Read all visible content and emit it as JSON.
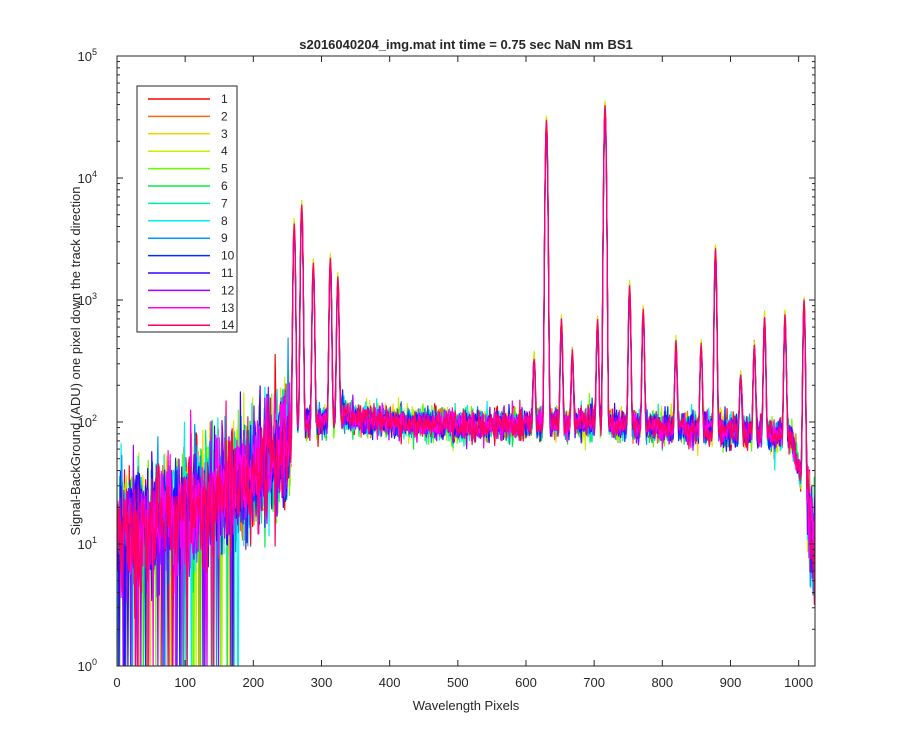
{
  "chart_data": {
    "type": "line",
    "title": "s2016040204_img.mat int time = 0.75 sec  NaN nm BS1",
    "xlabel": "Wavelength Pixels",
    "ylabel": "Signal-BackGround (ADU) one pixel down the track direction",
    "xlim": [
      0,
      1024
    ],
    "ylim": [
      1,
      100000
    ],
    "yscale": "log",
    "xticks": [
      0,
      100,
      200,
      300,
      400,
      500,
      600,
      700,
      800,
      900,
      1000
    ],
    "yticks": [
      {
        "base": "10",
        "exp": "0"
      },
      {
        "base": "10",
        "exp": "1"
      },
      {
        "base": "10",
        "exp": "2"
      },
      {
        "base": "10",
        "exp": "3"
      },
      {
        "base": "10",
        "exp": "4"
      },
      {
        "base": "10",
        "exp": "5"
      }
    ],
    "grid": false,
    "legend_position": "top-left",
    "series": [
      {
        "name": "1",
        "color": "#ff0000"
      },
      {
        "name": "2",
        "color": "#ff6a00"
      },
      {
        "name": "3",
        "color": "#ffd000"
      },
      {
        "name": "4",
        "color": "#c8f000"
      },
      {
        "name": "5",
        "color": "#66ff00"
      },
      {
        "name": "6",
        "color": "#00ee40"
      },
      {
        "name": "7",
        "color": "#00f0a0"
      },
      {
        "name": "8",
        "color": "#00eef0"
      },
      {
        "name": "9",
        "color": "#0096ff"
      },
      {
        "name": "10",
        "color": "#0030ff"
      },
      {
        "name": "11",
        "color": "#3c00ff"
      },
      {
        "name": "12",
        "color": "#9a00ff"
      },
      {
        "name": "13",
        "color": "#ff00f0"
      },
      {
        "name": "14",
        "color": "#ff0066"
      }
    ],
    "baseline_profile": {
      "x": [
        0,
        100,
        180,
        250,
        262,
        300,
        330,
        400,
        500,
        600,
        700,
        800,
        900,
        990,
        1010,
        1024
      ],
      "y": [
        12,
        18,
        32,
        70,
        95,
        100,
        110,
        100,
        92,
        95,
        98,
        90,
        85,
        75,
        25,
        10
      ]
    },
    "peaks": [
      {
        "x": 260,
        "y": 3900
      },
      {
        "x": 271,
        "y": 5600
      },
      {
        "x": 288,
        "y": 1800
      },
      {
        "x": 313,
        "y": 2000
      },
      {
        "x": 324,
        "y": 1350
      },
      {
        "x": 612,
        "y": 230
      },
      {
        "x": 630,
        "y": 28000
      },
      {
        "x": 652,
        "y": 560
      },
      {
        "x": 668,
        "y": 260
      },
      {
        "x": 705,
        "y": 560
      },
      {
        "x": 716,
        "y": 37000
      },
      {
        "x": 752,
        "y": 1150
      },
      {
        "x": 772,
        "y": 700
      },
      {
        "x": 820,
        "y": 350
      },
      {
        "x": 857,
        "y": 330
      },
      {
        "x": 878,
        "y": 2400
      },
      {
        "x": 915,
        "y": 160
      },
      {
        "x": 935,
        "y": 330
      },
      {
        "x": 950,
        "y": 620
      },
      {
        "x": 980,
        "y": 640
      },
      {
        "x": 1008,
        "y": 900
      }
    ]
  }
}
